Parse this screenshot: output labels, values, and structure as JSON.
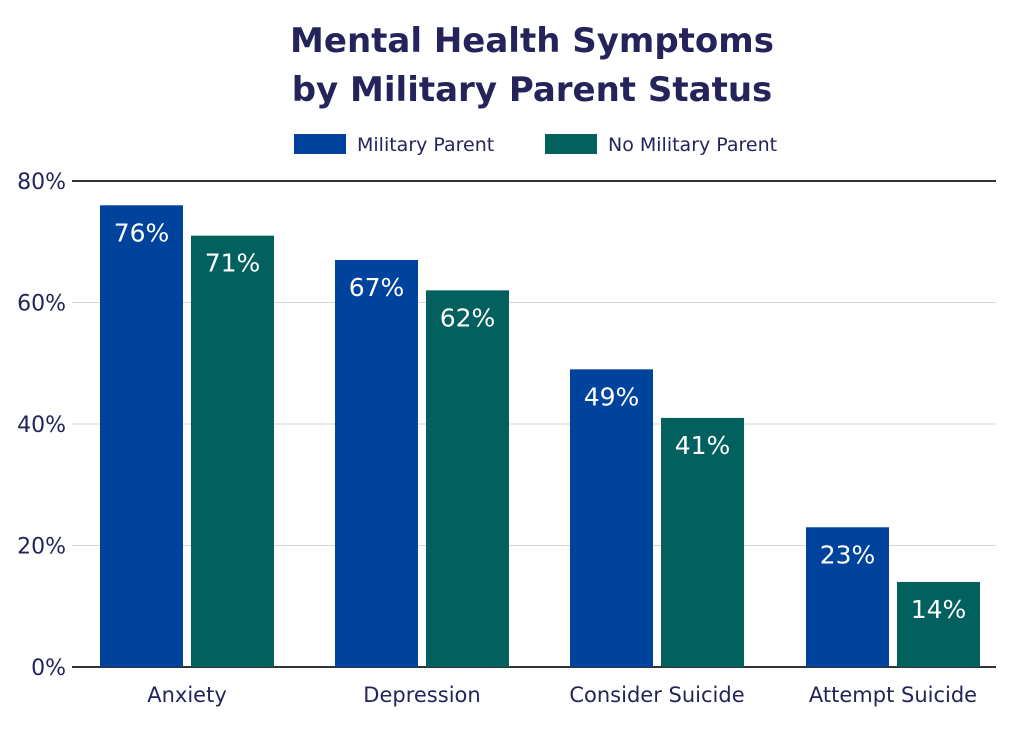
{
  "chart_data": {
    "type": "bar",
    "title_lines": [
      "Mental Health Symptoms",
      "by Military Parent Status"
    ],
    "categories": [
      "Anxiety",
      "Depression",
      "Consider Suicide",
      "Attempt Suicide"
    ],
    "series": [
      {
        "name": "Military Parent",
        "color": "#00439c",
        "values": [
          76,
          67,
          49,
          23
        ],
        "labels": [
          "76%",
          "67%",
          "49%",
          "23%"
        ]
      },
      {
        "name": "No Military Parent",
        "color": "#02605e",
        "values": [
          71,
          62,
          41,
          14
        ],
        "labels": [
          "71%",
          "62%",
          "41%",
          "14%"
        ]
      }
    ],
    "y_ticks": [
      {
        "value": 0,
        "label": "0%"
      },
      {
        "value": 20,
        "label": "20%"
      },
      {
        "value": 40,
        "label": "40%"
      },
      {
        "value": 60,
        "label": "60%"
      },
      {
        "value": 80,
        "label": "80%"
      }
    ],
    "ylim": [
      0,
      80
    ],
    "grid": true,
    "legend_position": "top-center",
    "title_color": "#24245a",
    "text_color": "#24245a",
    "value_label_color": "#ffffff",
    "axis_color": "#333333",
    "grid_color": "#d5d5d5"
  }
}
